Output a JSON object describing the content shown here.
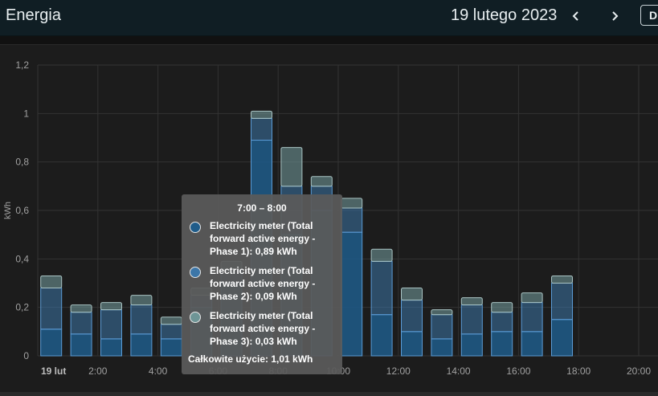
{
  "header": {
    "title": "Energia",
    "date": "19 lutego 2023",
    "prev_icon": "chevron-left-icon",
    "next_icon": "chevron-right-icon",
    "button_label": "D"
  },
  "chart_data": {
    "type": "bar",
    "stacked": true,
    "ylabel": "kWh",
    "ylim": [
      0,
      1.2
    ],
    "y_ticks": [
      "0",
      "0,2",
      "0,4",
      "0,6",
      "0,8",
      "1",
      "1,2"
    ],
    "x_tick_labels": [
      "19 lut",
      "2:00",
      "4:00",
      "6:00",
      "8:00",
      "10:00",
      "12:00",
      "14:00",
      "16:00",
      "18:00",
      "20:00"
    ],
    "grid": true,
    "hours": [
      0,
      1,
      2,
      3,
      4,
      5,
      6,
      7,
      8,
      9,
      10,
      11,
      12,
      13,
      14,
      15,
      16,
      17
    ],
    "series": [
      {
        "name": "Electricity meter (Total forward active energy - Phase 1)",
        "color": "#1f5c8a",
        "values": [
          0.11,
          0.09,
          0.07,
          0.09,
          0.07,
          0.2,
          0.3,
          0.89,
          0.5,
          0.6,
          0.51,
          0.17,
          0.1,
          0.07,
          0.09,
          0.1,
          0.1,
          0.15
        ]
      },
      {
        "name": "Electricity meter (Total forward active energy - Phase 2)",
        "color": "#3c76a8",
        "values": [
          0.17,
          0.09,
          0.12,
          0.12,
          0.06,
          0.05,
          0.06,
          0.09,
          0.2,
          0.1,
          0.1,
          0.22,
          0.13,
          0.1,
          0.12,
          0.08,
          0.12,
          0.15
        ]
      },
      {
        "name": "Electricity meter (Total forward active energy - Phase 3)",
        "color": "#6e9596",
        "values": [
          0.05,
          0.03,
          0.03,
          0.04,
          0.03,
          0.03,
          0.03,
          0.03,
          0.16,
          0.04,
          0.04,
          0.05,
          0.05,
          0.02,
          0.03,
          0.04,
          0.04,
          0.03
        ]
      }
    ]
  },
  "tooltip": {
    "title": "7:00 – 8:00",
    "items": [
      {
        "text": "Electricity meter (Total forward active energy - Phase 1): 0,89 kWh",
        "color": "#1f5c8a"
      },
      {
        "text": "Electricity meter (Total forward active energy - Phase 2): 0,09 kWh",
        "color": "#3c76a8"
      },
      {
        "text": "Electricity meter (Total forward active energy - Phase 3): 0,03 kWh",
        "color": "#6e9596"
      }
    ],
    "total": "Całkowite użycie: 1,01 kWh"
  }
}
